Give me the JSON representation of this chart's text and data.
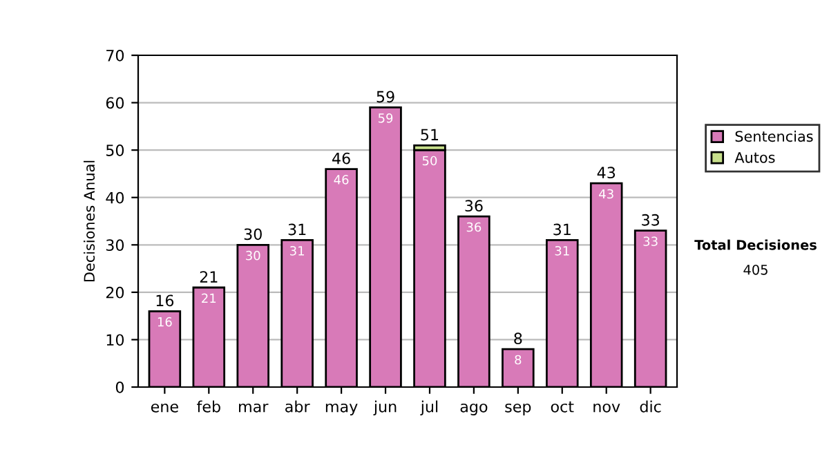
{
  "chart_data": {
    "type": "bar",
    "stacked": true,
    "ylabel": "Decisiones Anual",
    "categories": [
      "ene",
      "feb",
      "mar",
      "abr",
      "may",
      "jun",
      "jul",
      "ago",
      "sep",
      "oct",
      "nov",
      "dic"
    ],
    "series": [
      {
        "name": "Sentencias",
        "color": "#d87ab8",
        "values": [
          16,
          21,
          30,
          31,
          46,
          59,
          50,
          36,
          8,
          31,
          43,
          33
        ],
        "value_labels": [
          "16",
          "21",
          "30",
          "31",
          "46",
          "59",
          "50",
          "36",
          "8",
          "31",
          "43",
          "33"
        ]
      },
      {
        "name": "Autos",
        "color": "#c8e08c",
        "values": [
          null,
          null,
          null,
          null,
          null,
          null,
          1,
          null,
          null,
          null,
          null,
          null
        ],
        "value_labels": [
          null,
          null,
          null,
          null,
          null,
          null,
          null,
          null,
          null,
          null,
          null,
          null
        ]
      }
    ],
    "totals": [
      "16",
      "21",
      "30",
      "31",
      "46",
      "59",
      "51",
      "36",
      "8",
      "31",
      "43",
      "33"
    ],
    "ylim": [
      0,
      70
    ],
    "yticks": [
      0,
      10,
      20,
      30,
      40,
      50,
      60,
      70
    ],
    "grid": "y",
    "legend": "right",
    "annotations": [
      "Total Decisiones",
      "405"
    ]
  }
}
